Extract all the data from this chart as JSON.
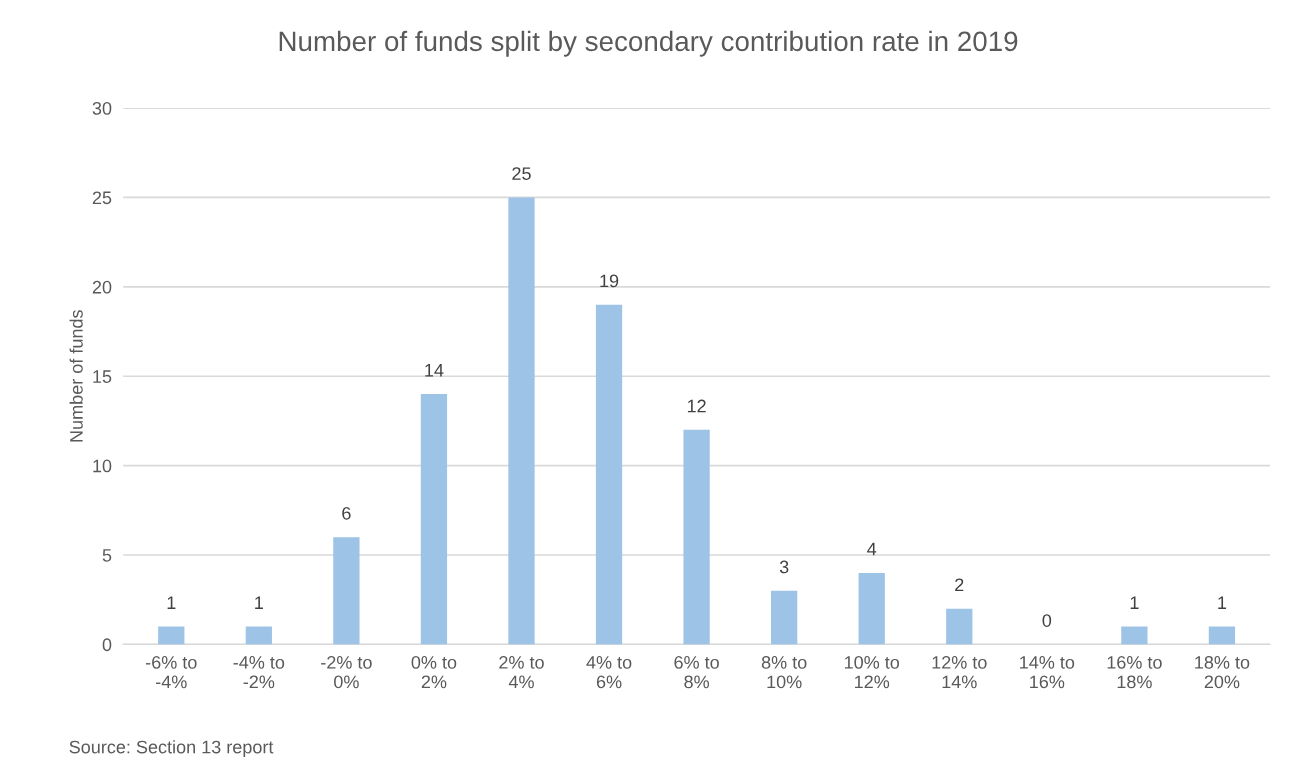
{
  "chart_data": {
    "type": "bar",
    "title": "Number of funds split by secondary contribution rate in 2019",
    "ylabel": "Number of funds",
    "categories": [
      "-6% to -4%",
      "-4% to -2%",
      "-2% to 0%",
      "0% to 2%",
      "2% to 4%",
      "4% to 6%",
      "6% to 8%",
      "8% to 10%",
      "10% to 12%",
      "12% to 14%",
      "14% to 16%",
      "16% to 18%",
      "18% to 20%"
    ],
    "values": [
      1,
      1,
      6,
      14,
      25,
      19,
      12,
      3,
      4,
      2,
      0,
      1,
      1
    ],
    "color": "#9dc3e6",
    "ylim": [
      0,
      30
    ],
    "yticks": [
      0,
      5,
      10,
      15,
      20,
      25,
      30
    ],
    "grid": "y",
    "data_labels": true,
    "annotations": [
      "Source: Section 13 report"
    ]
  }
}
